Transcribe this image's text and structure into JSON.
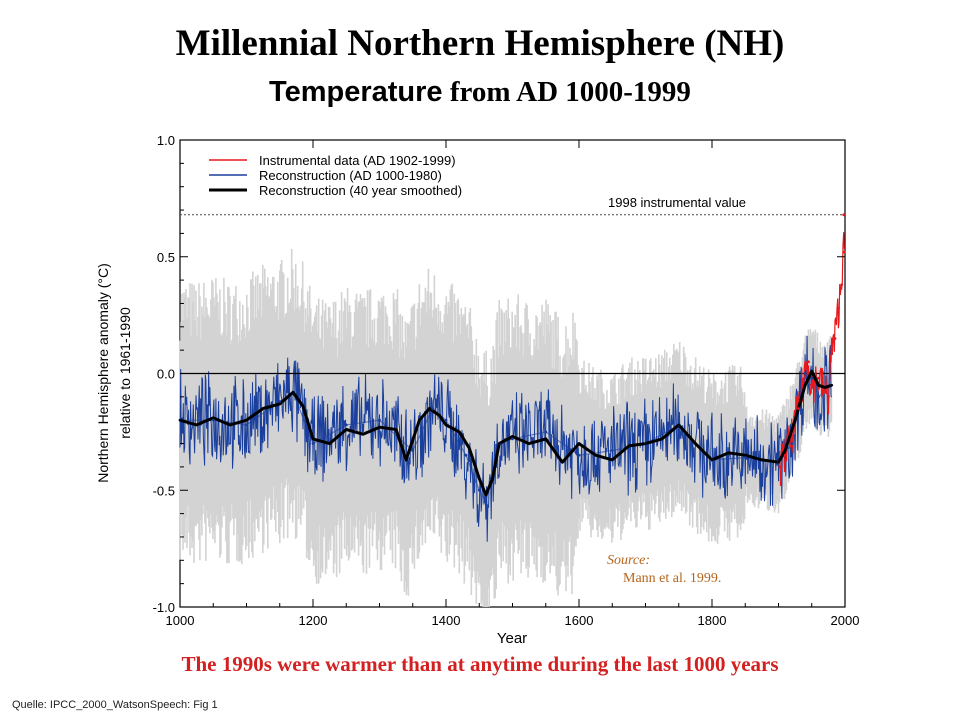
{
  "page": {
    "title_line1": "Millennial Northern Hemisphere (NH)",
    "title_line2_a": "Temperature",
    "title_line2_b": " from  AD 1000-1999",
    "caption": "The 1990s were  warmer than at anytime during the last 1000 years",
    "quelle": "Quelle: IPCC_2000_WatsonSpeech:  Fig 1"
  },
  "chart_data": {
    "type": "line",
    "xlabel": "Year",
    "ylabel_line1": "Northern Hemisphere anomaly (°C)",
    "ylabel_line2": "relative to 1961-1990",
    "xlim": [
      1000,
      2000
    ],
    "ylim": [
      -1.0,
      1.0
    ],
    "xticks": [
      "1000",
      "1200",
      "1400",
      "1600",
      "1800",
      "2000"
    ],
    "yticks": [
      "1.0",
      "0.5",
      "0.0",
      "-0.5",
      "-1.0"
    ],
    "zero_line": 0.0,
    "reference_line": {
      "label": "1998 instrumental value",
      "value": 0.68
    },
    "source_label": "Source:",
    "source_text": "Mann  et al. 1999.",
    "legend_position": "top-left",
    "colors": {
      "instrumental": "#e8191c",
      "reconstruction": "#1a3f9c",
      "smoothed": "#000000",
      "uncertainty": "#d3d3d3"
    },
    "series": [
      {
        "name": "Instrumental data (AD 1902-1999)",
        "x": [
          1902,
          1910,
          1920,
          1930,
          1940,
          1945,
          1950,
          1960,
          1970,
          1975,
          1980,
          1985,
          1990,
          1995,
          1998,
          1999
        ],
        "values": [
          -0.4,
          -0.35,
          -0.28,
          -0.15,
          0.02,
          0.05,
          -0.05,
          -0.02,
          -0.08,
          -0.1,
          0.1,
          0.15,
          0.28,
          0.38,
          0.68,
          0.52
        ]
      },
      {
        "name": "Reconstruction (AD 1000-1980)",
        "x": [
          1000,
          1050,
          1100,
          1150,
          1170,
          1200,
          1250,
          1300,
          1350,
          1380,
          1400,
          1430,
          1450,
          1460,
          1480,
          1500,
          1550,
          1600,
          1650,
          1700,
          1750,
          1800,
          1850,
          1900,
          1920,
          1940,
          1950,
          1960,
          1980
        ],
        "values": [
          -0.2,
          -0.2,
          -0.22,
          -0.12,
          -0.08,
          -0.3,
          -0.22,
          -0.2,
          -0.33,
          -0.15,
          -0.2,
          -0.35,
          -0.5,
          -0.55,
          -0.3,
          -0.28,
          -0.25,
          -0.35,
          -0.33,
          -0.3,
          -0.22,
          -0.37,
          -0.36,
          -0.38,
          -0.3,
          0.0,
          -0.02,
          -0.1,
          -0.05
        ]
      },
      {
        "name": "Reconstruction (40 year smoothed)",
        "x": [
          1000,
          1025,
          1050,
          1075,
          1100,
          1125,
          1150,
          1170,
          1185,
          1200,
          1225,
          1250,
          1275,
          1300,
          1325,
          1340,
          1360,
          1375,
          1390,
          1400,
          1420,
          1435,
          1450,
          1460,
          1470,
          1480,
          1500,
          1525,
          1550,
          1575,
          1600,
          1625,
          1650,
          1675,
          1700,
          1725,
          1750,
          1775,
          1800,
          1825,
          1850,
          1875,
          1900,
          1910,
          1925,
          1940,
          1950,
          1960,
          1970,
          1980
        ],
        "values": [
          -0.2,
          -0.22,
          -0.19,
          -0.22,
          -0.2,
          -0.15,
          -0.13,
          -0.08,
          -0.14,
          -0.28,
          -0.3,
          -0.24,
          -0.26,
          -0.23,
          -0.24,
          -0.37,
          -0.2,
          -0.15,
          -0.18,
          -0.22,
          -0.25,
          -0.32,
          -0.45,
          -0.52,
          -0.45,
          -0.3,
          -0.27,
          -0.3,
          -0.28,
          -0.38,
          -0.3,
          -0.35,
          -0.37,
          -0.31,
          -0.3,
          -0.28,
          -0.22,
          -0.3,
          -0.37,
          -0.34,
          -0.35,
          -0.37,
          -0.38,
          -0.33,
          -0.2,
          -0.05,
          0.01,
          -0.05,
          -0.06,
          -0.05
        ]
      }
    ]
  }
}
